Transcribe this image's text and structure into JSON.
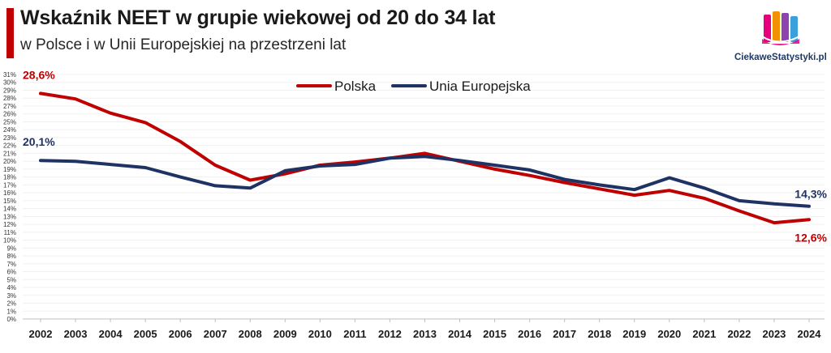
{
  "header": {
    "title": "Wskaźnik NEET w grupie wiekowej od 20 do 34 lat",
    "subtitle": "w Polsce i w Unii Europejskiej na przestrzeni lat"
  },
  "brand": {
    "name": "CiekaweStatystyki.pl",
    "icon": "bar-chart-logo-icon"
  },
  "colors": {
    "accent": "#c00000",
    "poland": "#c00000",
    "eu": "#1f3264"
  },
  "chart_data": {
    "type": "line",
    "x": [
      "2002",
      "2003",
      "2004",
      "2005",
      "2006",
      "2007",
      "2008",
      "2009",
      "2010",
      "2011",
      "2012",
      "2013",
      "2014",
      "2015",
      "2016",
      "2017",
      "2018",
      "2019",
      "2020",
      "2021",
      "2022",
      "2023",
      "2024"
    ],
    "series": [
      {
        "name": "Polska",
        "color": "#c00000",
        "values": [
          28.6,
          27.9,
          26.1,
          24.9,
          22.5,
          19.5,
          17.6,
          18.4,
          19.5,
          19.9,
          20.4,
          21.0,
          20.0,
          19.0,
          18.2,
          17.3,
          16.5,
          15.7,
          16.3,
          15.3,
          13.7,
          12.2,
          12.6
        ]
      },
      {
        "name": "Unia Europejska",
        "color": "#1f3264",
        "values": [
          20.1,
          20.0,
          19.6,
          19.2,
          18.0,
          16.9,
          16.6,
          18.8,
          19.4,
          19.6,
          20.4,
          20.6,
          20.1,
          19.5,
          18.9,
          17.7,
          17.0,
          16.4,
          17.9,
          16.6,
          15.0,
          14.6,
          14.3
        ]
      }
    ],
    "annotations": [
      {
        "series": 0,
        "index": 0,
        "text": "28,6%"
      },
      {
        "series": 1,
        "index": 0,
        "text": "20,1%"
      },
      {
        "series": 1,
        "index": 22,
        "text": "14,3%"
      },
      {
        "series": 0,
        "index": 22,
        "text": "12,6%"
      }
    ],
    "yticks": [
      "0%",
      "1%",
      "2%",
      "3%",
      "4%",
      "5%",
      "6%",
      "7%",
      "8%",
      "9%",
      "10%",
      "11%",
      "12%",
      "13%",
      "14%",
      "15%",
      "16%",
      "17%",
      "18%",
      "19%",
      "20%",
      "21%",
      "22%",
      "23%",
      "24%",
      "25%",
      "26%",
      "27%",
      "28%",
      "29%",
      "30%",
      "31%"
    ],
    "ylim": [
      0,
      31
    ],
    "legend": [
      "Polska",
      "Unia Europejska"
    ],
    "legend_position": "top-center",
    "title": "Wskaźnik NEET w grupie wiekowej od 20 do 34 lat",
    "xlabel": "",
    "ylabel": ""
  }
}
